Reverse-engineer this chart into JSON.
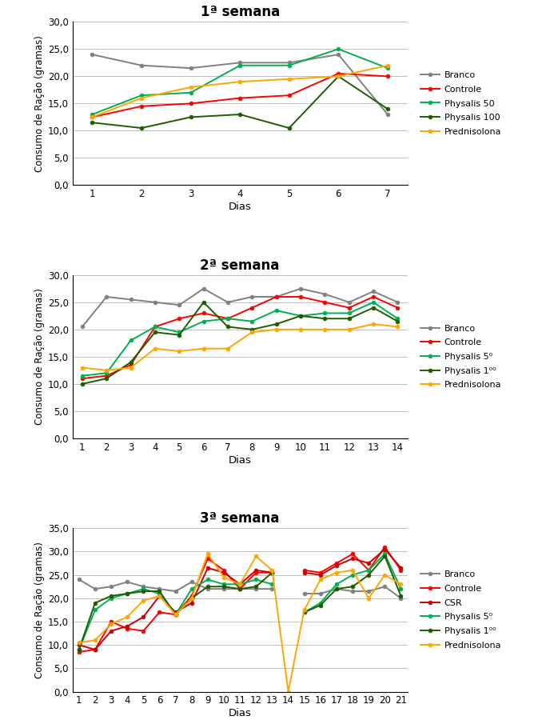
{
  "week1": {
    "title": "1ª semana",
    "days": [
      1,
      2,
      3,
      4,
      5,
      6,
      7
    ],
    "ylim": [
      0,
      30
    ],
    "yticks": [
      0.0,
      5.0,
      10.0,
      15.0,
      20.0,
      25.0,
      30.0
    ],
    "ytick_labels": [
      "0,0",
      "5,0",
      "10,0",
      "15,0",
      "20,0",
      "25,0",
      "30,0"
    ],
    "series": {
      "Branco": [
        24.0,
        22.0,
        21.5,
        22.5,
        22.5,
        24.0,
        13.0
      ],
      "Controle": [
        12.5,
        14.5,
        15.0,
        16.0,
        16.5,
        20.5,
        20.0
      ],
      "Physalis 50": [
        13.0,
        16.5,
        17.0,
        22.0,
        22.0,
        25.0,
        21.5
      ],
      "Physalis 100": [
        11.5,
        10.5,
        12.5,
        13.0,
        10.5,
        20.0,
        14.0
      ],
      "Prednisolona": [
        12.5,
        16.0,
        18.0,
        19.0,
        19.5,
        20.0,
        22.0
      ]
    },
    "colors": {
      "Branco": "#808080",
      "Controle": "#FF0000",
      "Physalis 50": "#00B050",
      "Physalis 100": "#1F5C00",
      "Prednisolona": "#FFA500"
    },
    "legend_labels": [
      "Branco",
      "Controle",
      "Physalis 50",
      "Physalis 100",
      "Prednisolona"
    ]
  },
  "week2": {
    "title": "2ª semana",
    "days": [
      1,
      2,
      3,
      4,
      5,
      6,
      7,
      8,
      9,
      10,
      11,
      12,
      13,
      14
    ],
    "ylim": [
      0,
      30
    ],
    "yticks": [
      0.0,
      5.0,
      10.0,
      15.0,
      20.0,
      25.0,
      30.0
    ],
    "ytick_labels": [
      "0,0",
      "5,0",
      "10,0",
      "15,0",
      "20,0",
      "25,0",
      "30,0"
    ],
    "series": {
      "Branco": [
        20.5,
        26.0,
        25.5,
        25.0,
        24.5,
        27.5,
        25.0,
        26.0,
        26.0,
        27.5,
        26.5,
        25.0,
        27.0,
        25.0
      ],
      "Controle": [
        11.0,
        11.5,
        13.5,
        20.5,
        22.0,
        23.0,
        22.0,
        24.0,
        26.0,
        26.0,
        25.0,
        24.0,
        26.0,
        24.0
      ],
      "Physalis 50": [
        11.5,
        12.0,
        18.0,
        20.5,
        19.5,
        21.5,
        22.0,
        21.5,
        23.5,
        22.5,
        23.0,
        23.0,
        25.0,
        22.0
      ],
      "Physalis 100": [
        10.0,
        11.0,
        14.0,
        19.5,
        19.0,
        25.0,
        20.5,
        20.0,
        21.0,
        22.5,
        22.0,
        22.0,
        24.0,
        21.5
      ],
      "Prednisolona": [
        13.0,
        12.5,
        13.0,
        16.5,
        16.0,
        16.5,
        16.5,
        19.5,
        20.0,
        20.0,
        20.0,
        20.0,
        21.0,
        20.5
      ]
    },
    "colors": {
      "Branco": "#808080",
      "Controle": "#FF0000",
      "Physalis 50": "#00B050",
      "Physalis 100": "#1F5C00",
      "Prednisolona": "#FFA500"
    },
    "legend_labels": [
      "Branco",
      "Controle",
      "Physalis 5⁰",
      "Physalis 1⁰⁰",
      "Prednisolona"
    ]
  },
  "week3": {
    "title": "3ª semana",
    "days": [
      1,
      2,
      3,
      4,
      5,
      6,
      7,
      8,
      9,
      10,
      11,
      12,
      13,
      14,
      15,
      16,
      17,
      18,
      19,
      20,
      21
    ],
    "ylim": [
      0,
      35
    ],
    "yticks": [
      0.0,
      5.0,
      10.0,
      15.0,
      20.0,
      25.0,
      30.0,
      35.0
    ],
    "ytick_labels": [
      "0,0",
      "5,0",
      "10,0",
      "15,0",
      "20,0",
      "25,0",
      "30,0",
      "35,0"
    ],
    "series": {
      "Branco": [
        24.0,
        22.0,
        22.5,
        23.5,
        22.5,
        22.0,
        21.5,
        23.5,
        22.0,
        22.0,
        22.0,
        22.0,
        22.0,
        null,
        21.0,
        21.0,
        22.0,
        21.5,
        21.5,
        22.5,
        20.0
      ],
      "Controle": [
        8.5,
        9.0,
        15.0,
        13.5,
        13.0,
        17.0,
        16.5,
        20.5,
        28.5,
        26.0,
        22.0,
        25.5,
        25.5,
        null,
        26.0,
        25.5,
        27.5,
        29.5,
        26.0,
        31.0,
        26.0
      ],
      "CSR": [
        10.0,
        9.0,
        13.0,
        14.0,
        16.0,
        20.5,
        17.0,
        19.0,
        26.5,
        25.5,
        23.0,
        26.0,
        25.5,
        null,
        25.5,
        25.0,
        27.0,
        28.5,
        27.5,
        30.5,
        26.5
      ],
      "Physalis 50": [
        9.0,
        17.5,
        20.0,
        21.0,
        22.0,
        21.0,
        16.5,
        22.0,
        24.0,
        23.0,
        23.0,
        24.0,
        23.0,
        null,
        17.0,
        19.0,
        23.0,
        25.0,
        26.0,
        29.5,
        22.0
      ],
      "Physalis 100": [
        9.0,
        19.0,
        20.5,
        21.0,
        21.5,
        21.5,
        16.5,
        20.0,
        22.5,
        22.5,
        22.0,
        22.5,
        25.5,
        null,
        17.0,
        18.5,
        22.0,
        22.5,
        25.0,
        29.0,
        20.5
      ],
      "Prednisolona": [
        10.5,
        11.0,
        14.5,
        16.0,
        19.5,
        20.5,
        16.5,
        20.0,
        29.5,
        24.5,
        23.0,
        29.0,
        26.0,
        0.0,
        17.5,
        24.0,
        25.5,
        26.0,
        20.0,
        25.0,
        23.0
      ]
    },
    "colors": {
      "Branco": "#808080",
      "Controle": "#FF0000",
      "CSR": "#CC0000",
      "Physalis 50": "#00B050",
      "Physalis 100": "#1F5C00",
      "Prednisolona": "#FFA500"
    },
    "legend_labels": [
      "Branco",
      "Controle",
      "CSR",
      "Physalis 5⁰",
      "Physalis 1⁰⁰",
      "Prednisolona"
    ]
  },
  "xlabel": "Dias",
  "ylabel": "Consumo de Ração (gramas)",
  "background": "#FFFFFF",
  "grid_color": "#BEBEBE",
  "marker": "o",
  "markersize": 3.5,
  "linewidth": 1.4
}
